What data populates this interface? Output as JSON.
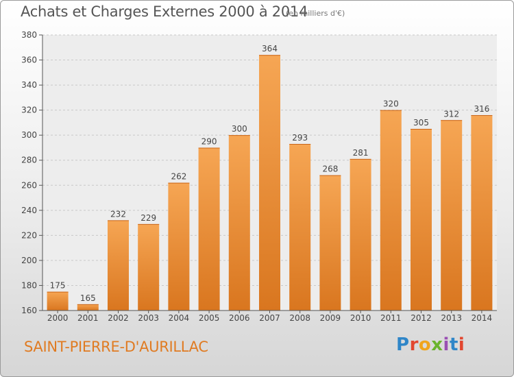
{
  "header": {
    "title": "Achats et Charges Externes 2000 à 2014",
    "unit_note": "(en milliers d'€)"
  },
  "footer": {
    "place_name": "SAINT-PIERRE-D'AURILLAC",
    "brand": "Proxiti",
    "brand_colors": [
      "#2f86c8",
      "#e2462f",
      "#f0a51c",
      "#6ab42d",
      "#9a4fb3",
      "#2f86c8",
      "#e2462f"
    ]
  },
  "colors": {
    "bar_light": "#f6a654",
    "bar_dark": "#d9761f",
    "place_text": "#e07b22",
    "grid": "#c8c8c8"
  },
  "chart_data": {
    "type": "bar",
    "title": "Achats et Charges Externes 2000 à 2014",
    "subtitle": "(en milliers d'€)",
    "categories": [
      "2000",
      "2001",
      "2002",
      "2003",
      "2004",
      "2005",
      "2006",
      "2007",
      "2008",
      "2009",
      "2010",
      "2011",
      "2012",
      "2013",
      "2014"
    ],
    "values": [
      175,
      165,
      232,
      229,
      262,
      290,
      300,
      364,
      293,
      268,
      281,
      320,
      305,
      312,
      316
    ],
    "ylim": [
      160,
      380
    ],
    "yticks": [
      160,
      180,
      200,
      220,
      240,
      260,
      280,
      300,
      320,
      340,
      360,
      380
    ],
    "xlabel": "",
    "ylabel": "",
    "grid": true,
    "data_labels": true,
    "legend": "none"
  }
}
